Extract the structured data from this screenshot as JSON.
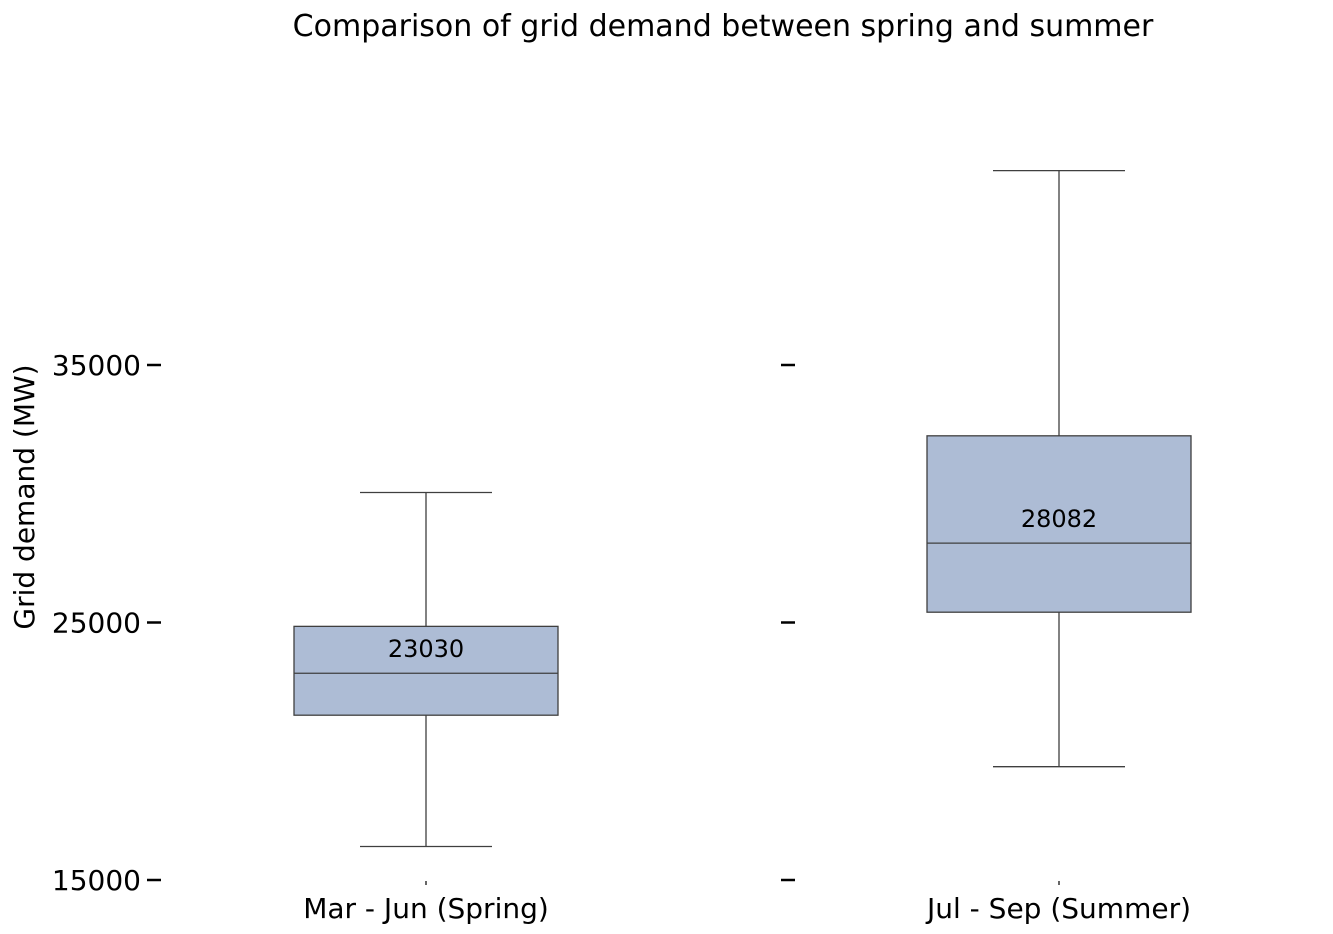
{
  "chart_data": {
    "type": "box",
    "title": "Comparison of grid demand between spring and summer",
    "xlabel": "",
    "ylabel": "Grid demand (MW)",
    "ylim": [
      15000,
      41400
    ],
    "yticks": [
      15000,
      25000,
      35000
    ],
    "ytick_labels": [
      "15000",
      "25000",
      "35000"
    ],
    "grid": false,
    "box_color": "#adbcd5",
    "line_color": "#3f3f3f",
    "categories": [
      "Mar - Jun (Spring)",
      "Jul - Sep (Summer)"
    ],
    "boxes": [
      {
        "category": "Mar - Jun (Spring)",
        "whisker_low": 16300,
        "q1": 21400,
        "median": 23030,
        "q3": 24850,
        "whisker_high": 30050,
        "median_label": "23030"
      },
      {
        "category": "Jul - Sep (Summer)",
        "whisker_low": 19400,
        "q1": 25400,
        "median": 28082,
        "q3": 32250,
        "whisker_high": 42550,
        "median_label": "28082"
      }
    ]
  }
}
